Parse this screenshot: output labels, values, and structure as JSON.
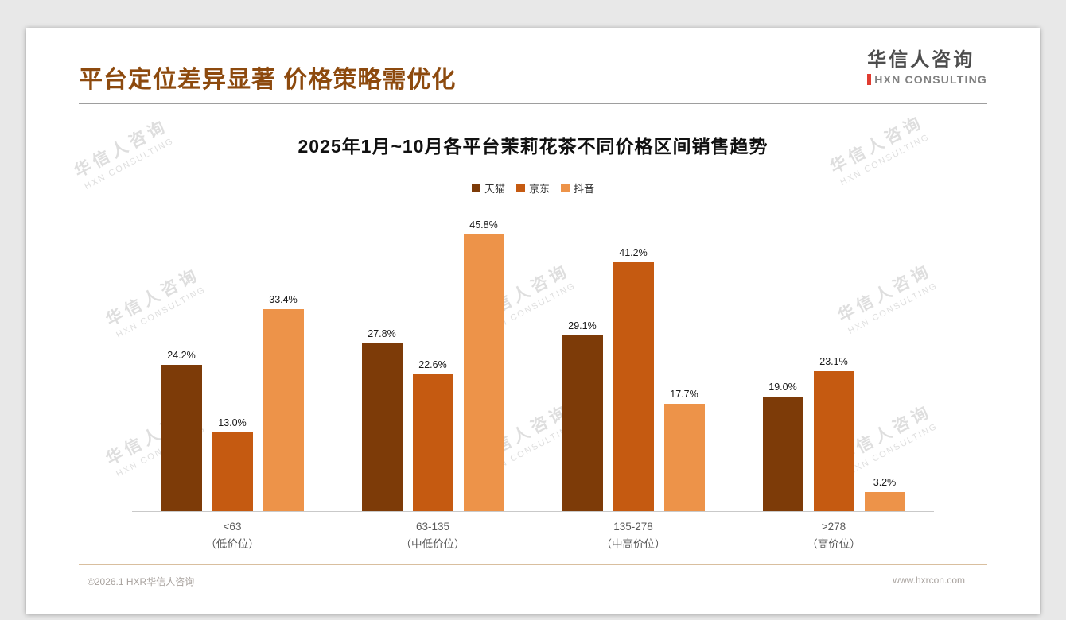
{
  "slide": {
    "title": "平台定位差异显著 价格策略需优化",
    "logo": {
      "name": "华信人咨询",
      "sub": "HXN CONSULTING"
    },
    "watermark": {
      "line1": "华信人咨询",
      "line2": "HXN CONSULTING"
    },
    "footer": {
      "left": "©2026.1 HXR华信人咨询",
      "right": "www.hxrcon.com"
    }
  },
  "chart_data": {
    "type": "bar",
    "title": "2025年1月~10月各平台茉莉花茶不同价格区间销售趋势",
    "categories": [
      "<63",
      "63-135",
      "135-278",
      ">278"
    ],
    "category_sublabels": [
      "（低价位）",
      "（中低价位）",
      "（中高价位）",
      "（高价位）"
    ],
    "series": [
      {
        "name": "天猫",
        "color": "#7d3b08",
        "values": [
          24.2,
          27.8,
          29.1,
          19.0
        ]
      },
      {
        "name": "京东",
        "color": "#c55a11",
        "values": [
          13.0,
          22.6,
          41.2,
          23.1
        ]
      },
      {
        "name": "抖音",
        "color": "#ed9349",
        "values": [
          33.4,
          45.8,
          17.7,
          3.2
        ]
      }
    ],
    "value_suffix": "%",
    "ylim": [
      0,
      50
    ],
    "legend_position": "top",
    "grid": false,
    "xlabel": "",
    "ylabel": ""
  },
  "colors": {
    "title": "#8d4a0e",
    "logo_accent": "#e03c31",
    "axis_line": "#c9c9c9",
    "watermark": "#d4d4d4"
  }
}
